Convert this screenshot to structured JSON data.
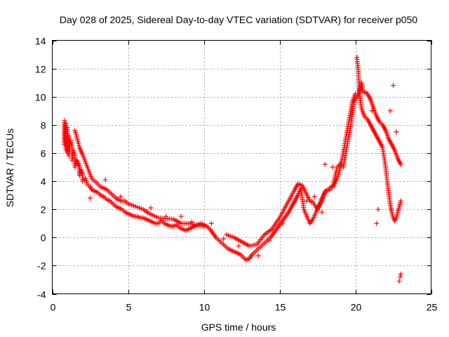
{
  "chart_data": {
    "type": "scatter",
    "title": "Day 028 of 2025, Sidereal Day-to-day VTEC variation (SDTVAR) for receiver p050",
    "xlabel": "GPS time / hours",
    "ylabel": "SDTVAR / TECUs",
    "xlim": [
      0,
      25
    ],
    "ylim": [
      -4,
      14
    ],
    "x_ticks": [
      {
        "value": 0,
        "label": "0"
      },
      {
        "value": 5,
        "label": "5"
      },
      {
        "value": 10,
        "label": "10"
      },
      {
        "value": 15,
        "label": "15"
      },
      {
        "value": 20,
        "label": "20"
      },
      {
        "value": 25,
        "label": "25"
      }
    ],
    "y_ticks": [
      {
        "value": -4,
        "label": "-4"
      },
      {
        "value": -2,
        "label": "-2"
      },
      {
        "value": 0,
        "label": "0"
      },
      {
        "value": 2,
        "label": "2"
      },
      {
        "value": 4,
        "label": "4"
      },
      {
        "value": 6,
        "label": "6"
      },
      {
        "value": 8,
        "label": "8"
      },
      {
        "value": 10,
        "label": "10"
      },
      {
        "value": 12,
        "label": "12"
      },
      {
        "value": 14,
        "label": "14"
      }
    ],
    "grid": true,
    "marker": "plus",
    "marker_color": "#ff0000",
    "series": [
      {
        "name": "main",
        "points": [
          [
            0.8,
            8.3
          ],
          [
            0.8,
            7.5
          ],
          [
            0.8,
            6.6
          ],
          [
            0.9,
            8.1
          ],
          [
            0.9,
            6.2
          ],
          [
            1.0,
            7.8
          ],
          [
            1.0,
            6.0
          ],
          [
            1.1,
            7.2
          ],
          [
            1.1,
            5.8
          ],
          [
            1.2,
            6.9
          ],
          [
            1.3,
            6.5
          ],
          [
            1.3,
            5.5
          ],
          [
            1.4,
            6.2
          ],
          [
            1.5,
            5.8
          ],
          [
            1.5,
            5.0
          ],
          [
            1.6,
            5.5
          ],
          [
            1.7,
            5.3
          ],
          [
            1.8,
            5.0
          ],
          [
            1.8,
            4.4
          ],
          [
            1.9,
            4.8
          ],
          [
            2.0,
            4.5
          ],
          [
            2.0,
            4.0
          ],
          [
            2.2,
            4.2
          ],
          [
            2.3,
            3.8
          ],
          [
            2.5,
            3.6
          ],
          [
            2.6,
            3.4
          ],
          [
            2.8,
            3.3
          ],
          [
            3.0,
            3.2
          ],
          [
            3.2,
            3.0
          ],
          [
            3.4,
            2.9
          ],
          [
            3.6,
            2.7
          ],
          [
            3.8,
            2.6
          ],
          [
            4.0,
            2.4
          ],
          [
            4.2,
            2.2
          ],
          [
            4.4,
            2.1
          ],
          [
            4.6,
            2.0
          ],
          [
            4.8,
            1.8
          ],
          [
            5.0,
            1.7
          ],
          [
            5.2,
            1.6
          ],
          [
            5.4,
            1.5
          ],
          [
            5.6,
            1.5
          ],
          [
            5.8,
            1.4
          ],
          [
            6.0,
            1.4
          ],
          [
            6.2,
            1.3
          ],
          [
            6.4,
            1.2
          ],
          [
            6.6,
            1.1
          ],
          [
            6.8,
            1.0
          ],
          [
            7.0,
            1.0
          ],
          [
            7.2,
            1.2
          ],
          [
            7.4,
            1.0
          ],
          [
            7.6,
            0.9
          ],
          [
            7.8,
            0.8
          ],
          [
            8.0,
            0.8
          ],
          [
            8.2,
            0.9
          ],
          [
            8.4,
            0.7
          ],
          [
            8.6,
            0.6
          ],
          [
            8.8,
            0.5
          ],
          [
            9.0,
            0.6
          ],
          [
            9.2,
            0.7
          ],
          [
            9.4,
            0.8
          ],
          [
            9.6,
            0.9
          ],
          [
            9.8,
            1.0
          ],
          [
            10.0,
            0.9
          ],
          [
            10.2,
            0.8
          ],
          [
            10.4,
            0.6
          ],
          [
            10.6,
            0.3
          ],
          [
            10.8,
            0.0
          ],
          [
            11.0,
            -0.2
          ],
          [
            11.2,
            -0.4
          ],
          [
            11.4,
            -0.6
          ],
          [
            11.6,
            -0.8
          ],
          [
            11.8,
            -0.9
          ],
          [
            12.0,
            -1.0
          ],
          [
            12.2,
            -1.1
          ],
          [
            12.4,
            -1.2
          ],
          [
            12.6,
            -1.4
          ],
          [
            12.8,
            -1.6
          ],
          [
            13.0,
            -1.5
          ],
          [
            13.2,
            -1.2
          ],
          [
            13.4,
            -1.0
          ],
          [
            13.6,
            -0.8
          ],
          [
            13.8,
            -0.6
          ],
          [
            14.0,
            -0.4
          ],
          [
            14.2,
            -0.2
          ],
          [
            14.4,
            0.0
          ],
          [
            14.6,
            0.3
          ],
          [
            14.8,
            0.6
          ],
          [
            15.0,
            0.9
          ],
          [
            15.2,
            1.2
          ],
          [
            15.4,
            1.5
          ],
          [
            15.6,
            1.8
          ],
          [
            15.8,
            2.2
          ],
          [
            16.0,
            2.6
          ],
          [
            16.2,
            3.0
          ],
          [
            16.4,
            3.5
          ],
          [
            16.6,
            2.0
          ],
          [
            16.8,
            1.5
          ],
          [
            17.0,
            1.0
          ],
          [
            17.2,
            1.3
          ],
          [
            17.4,
            1.8
          ],
          [
            17.6,
            2.3
          ],
          [
            17.8,
            2.8
          ],
          [
            18.0,
            3.2
          ],
          [
            18.2,
            3.4
          ],
          [
            18.4,
            3.6
          ],
          [
            18.6,
            3.7
          ],
          [
            18.8,
            4.2
          ],
          [
            19.0,
            5.0
          ],
          [
            19.2,
            6.0
          ],
          [
            19.4,
            7.2
          ],
          [
            19.6,
            8.4
          ],
          [
            19.8,
            9.6
          ],
          [
            20.0,
            10.2
          ],
          [
            20.1,
            12.8
          ],
          [
            20.2,
            11.8
          ],
          [
            20.3,
            10.0
          ],
          [
            20.4,
            9.2
          ],
          [
            20.6,
            8.6
          ],
          [
            20.8,
            8.4
          ],
          [
            21.0,
            8.0
          ],
          [
            21.2,
            7.6
          ],
          [
            21.4,
            7.2
          ],
          [
            21.6,
            6.8
          ],
          [
            21.8,
            6.4
          ],
          [
            22.0,
            5.0
          ],
          [
            22.1,
            4.0
          ],
          [
            22.2,
            3.2
          ],
          [
            22.3,
            2.4
          ],
          [
            22.4,
            1.8
          ],
          [
            22.5,
            1.4
          ],
          [
            22.6,
            1.2
          ],
          [
            22.7,
            1.4
          ],
          [
            22.8,
            1.8
          ],
          [
            22.9,
            2.2
          ],
          [
            23.0,
            2.6
          ]
        ]
      },
      {
        "name": "upper-band",
        "points": [
          [
            1.5,
            7.6
          ],
          [
            1.6,
            7.2
          ],
          [
            1.7,
            6.8
          ],
          [
            1.8,
            6.4
          ],
          [
            1.9,
            6.1
          ],
          [
            2.0,
            5.9
          ],
          [
            2.6,
            4.2
          ],
          [
            2.8,
            4.0
          ],
          [
            3.0,
            3.8
          ],
          [
            3.2,
            3.6
          ],
          [
            3.4,
            3.5
          ],
          [
            3.6,
            3.4
          ],
          [
            3.8,
            3.2
          ],
          [
            4.0,
            3.0
          ],
          [
            4.2,
            2.8
          ],
          [
            4.5,
            2.6
          ],
          [
            4.8,
            2.6
          ],
          [
            5.0,
            2.4
          ],
          [
            6.0,
            2.0
          ],
          [
            6.4,
            1.7
          ],
          [
            7.0,
            1.4
          ],
          [
            8.0,
            1.3
          ],
          [
            8.5,
            1.0
          ],
          [
            9.0,
            1.0
          ],
          [
            9.5,
            0.9
          ],
          [
            10.0,
            0.8
          ],
          [
            11.5,
            0.2
          ],
          [
            12.0,
            0.0
          ],
          [
            12.5,
            -0.3
          ],
          [
            13.0,
            -0.6
          ],
          [
            13.5,
            -0.5
          ],
          [
            14.0,
            0.2
          ],
          [
            14.5,
            0.6
          ],
          [
            15.0,
            1.4
          ],
          [
            15.5,
            2.4
          ],
          [
            16.0,
            3.4
          ],
          [
            16.2,
            3.8
          ],
          [
            16.5,
            3.7
          ],
          [
            17.0,
            2.6
          ],
          [
            17.2,
            2.5
          ],
          [
            17.5,
            2.0
          ],
          [
            17.8,
            2.6
          ],
          [
            18.0,
            3.3
          ],
          [
            18.3,
            3.4
          ],
          [
            18.5,
            3.6
          ],
          [
            18.8,
            5.0
          ],
          [
            19.0,
            5.2
          ],
          [
            19.2,
            5.0
          ],
          [
            19.5,
            6.8
          ],
          [
            19.7,
            8.0
          ],
          [
            19.9,
            9.6
          ],
          [
            20.2,
            10.2
          ],
          [
            20.4,
            11.0
          ],
          [
            20.5,
            10.4
          ],
          [
            20.8,
            10.2
          ],
          [
            21.0,
            9.8
          ],
          [
            21.2,
            9.2
          ],
          [
            21.4,
            8.6
          ],
          [
            21.6,
            8.2
          ],
          [
            21.8,
            8.0
          ],
          [
            22.0,
            7.6
          ],
          [
            22.2,
            7.0
          ],
          [
            22.4,
            6.6
          ],
          [
            22.6,
            6.2
          ],
          [
            22.8,
            5.6
          ],
          [
            23.0,
            5.2
          ]
        ]
      },
      {
        "name": "scattered",
        "points": [
          [
            2.5,
            2.8
          ],
          [
            3.5,
            4.1
          ],
          [
            4.5,
            2.9
          ],
          [
            6.5,
            2.1
          ],
          [
            7.5,
            1.5
          ],
          [
            8.5,
            1.5
          ],
          [
            9.2,
            1.1
          ],
          [
            10.5,
            1.0
          ],
          [
            11.3,
            -0.1
          ],
          [
            12.3,
            -0.6
          ],
          [
            13.6,
            -1.3
          ],
          [
            14.3,
            -0.2
          ],
          [
            15.2,
            1.0
          ],
          [
            16.8,
            2.6
          ],
          [
            17.3,
            2.9
          ],
          [
            17.8,
            1.8
          ],
          [
            18.5,
            5.0
          ],
          [
            18.0,
            5.2
          ],
          [
            21.1,
            9.0
          ],
          [
            21.5,
            2.0
          ],
          [
            21.4,
            1.0
          ],
          [
            22.3,
            9.0
          ],
          [
            22.5,
            10.8
          ],
          [
            22.7,
            7.5
          ],
          [
            23.0,
            -2.6
          ],
          [
            22.9,
            -3.1
          ],
          [
            22.95,
            -2.8
          ]
        ]
      }
    ]
  }
}
